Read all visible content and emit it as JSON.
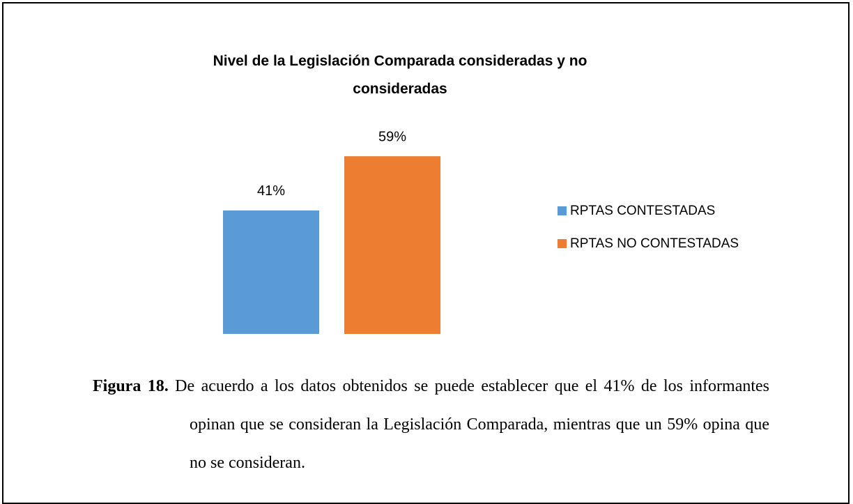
{
  "chart_data": {
    "type": "bar",
    "title": "Nivel de la Legislación Comparada consideradas y no consideradas",
    "categories": [
      null
    ],
    "series": [
      {
        "name": "RPTAS CONTESTADAS",
        "color": "#5b9bd5",
        "values": [
          41
        ],
        "value_labels": [
          "41%"
        ]
      },
      {
        "name": "RPTAS NO CONTESTADAS",
        "color": "#ed7d31",
        "values": [
          59
        ],
        "value_labels": [
          "59%"
        ]
      }
    ],
    "legend": "right"
  },
  "caption": {
    "label": "Figura 18.",
    "text": "De acuerdo a los datos obtenidos se puede establecer que el 41% de los informantes opinan que se consideran la Legislación Comparada, mientras que un 59% opina que no se consideran."
  }
}
